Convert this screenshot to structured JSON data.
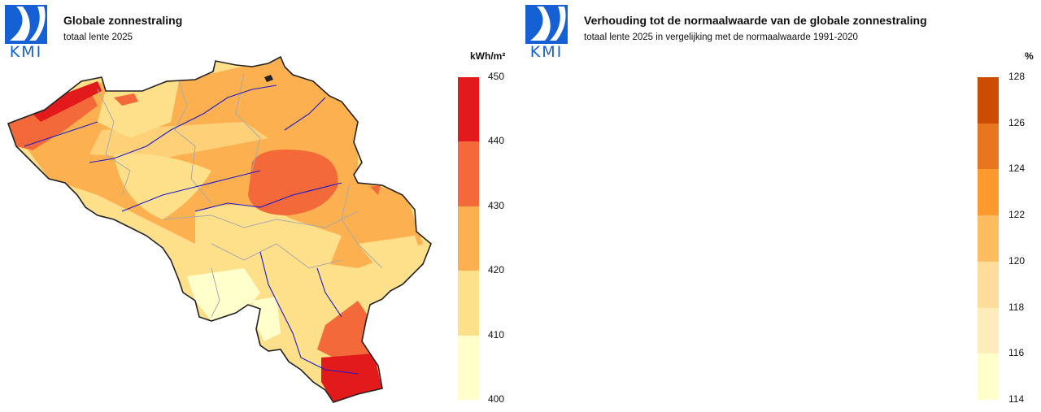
{
  "logo": {
    "text": "KMI",
    "color": "#1560d4"
  },
  "maps": [
    {
      "title": "Globale zonnestraling",
      "subtitle": "totaal lente 2025",
      "unit": "kWh/m²",
      "scale": [
        {
          "from": 400,
          "to": 410,
          "color": "#ffffcc"
        },
        {
          "from": 410,
          "to": 420,
          "color": "#fee08b"
        },
        {
          "from": 420,
          "to": 430,
          "color": "#fdb04f"
        },
        {
          "from": 430,
          "to": 440,
          "color": "#f4693a"
        },
        {
          "from": 440,
          "to": 450,
          "color": "#e31a1c"
        }
      ],
      "ticks": [
        "400",
        "410",
        "420",
        "430",
        "440",
        "450"
      ]
    },
    {
      "title": "Verhouding tot de normaalwaarde van de globale zonnestraling",
      "subtitle": "totaal lente 2025 in vergelijking met de normaalwaarde 1991-2020",
      "unit": "%",
      "scale": [
        {
          "from": 114,
          "to": 116,
          "color": "#ffffcc"
        },
        {
          "from": 116,
          "to": 118,
          "color": "#feedbb"
        },
        {
          "from": 118,
          "to": 120,
          "color": "#fedc9a"
        },
        {
          "from": 120,
          "to": 122,
          "color": "#fdbc60"
        },
        {
          "from": 122,
          "to": 124,
          "color": "#fd9a2e"
        },
        {
          "from": 124,
          "to": 126,
          "color": "#e8761e"
        },
        {
          "from": 126,
          "to": 128,
          "color": "#cc4c02"
        }
      ],
      "ticks": [
        "114",
        "116",
        "118",
        "120",
        "122",
        "124",
        "126",
        "128"
      ]
    }
  ]
}
